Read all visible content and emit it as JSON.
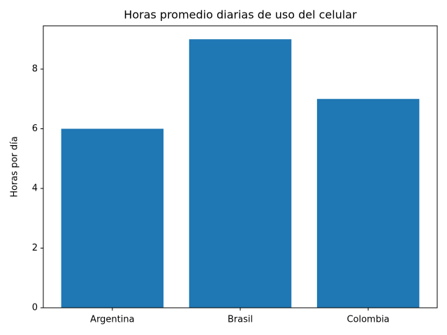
{
  "chart_data": {
    "type": "bar",
    "title": "Horas promedio diarias de uso del celular",
    "ylabel": "Horas por día",
    "categories": [
      "Argentina",
      "Brasil",
      "Colombia"
    ],
    "values": [
      6,
      9,
      7
    ],
    "color": "#1f77b4",
    "ylim": [
      0,
      9.45
    ],
    "yticks": [
      0,
      2,
      4,
      6,
      8
    ],
    "grid": false
  }
}
